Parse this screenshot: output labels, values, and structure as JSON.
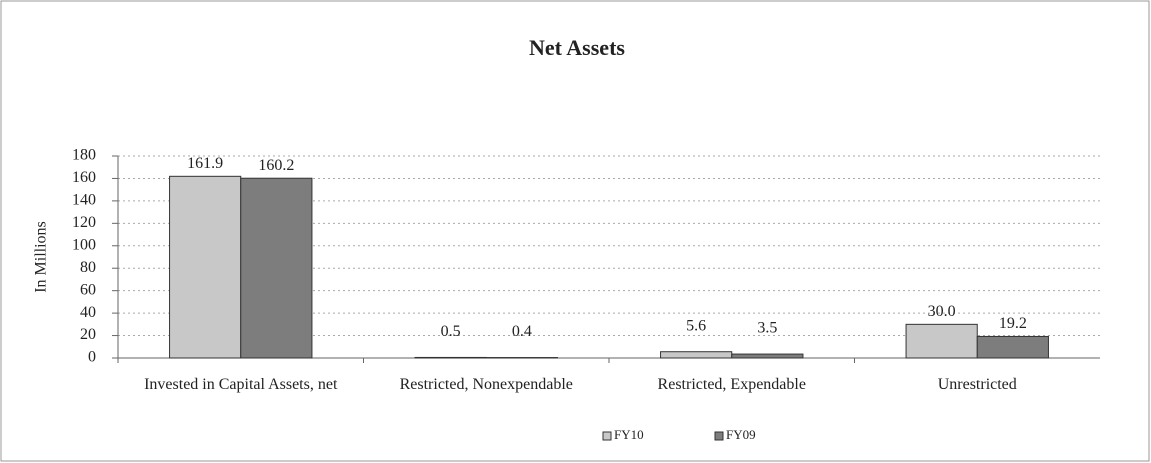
{
  "chart_data": {
    "type": "bar",
    "title": "Net Assets",
    "y_label": "In Millions",
    "categories": [
      "Invested in Capital Assets, net",
      "Restricted, Nonexpendable",
      "Restricted, Expendable",
      "Unrestricted"
    ],
    "series": [
      {
        "name": "FY10",
        "color": "#c8c8c8",
        "values": [
          161.9,
          0.5,
          5.6,
          30.0
        ],
        "value_labels": [
          "161.9",
          "0.5",
          "5.6",
          "30.0"
        ]
      },
      {
        "name": "FY09",
        "color": "#7d7d7d",
        "values": [
          160.2,
          0.4,
          3.5,
          19.2
        ],
        "value_labels": [
          "160.2",
          "0.4",
          "3.5",
          "19.2"
        ]
      }
    ],
    "ylim": [
      0,
      180
    ],
    "yticks": [
      0,
      20,
      40,
      60,
      80,
      100,
      120,
      140,
      160,
      180
    ],
    "grid": true,
    "legend": "bottom"
  }
}
